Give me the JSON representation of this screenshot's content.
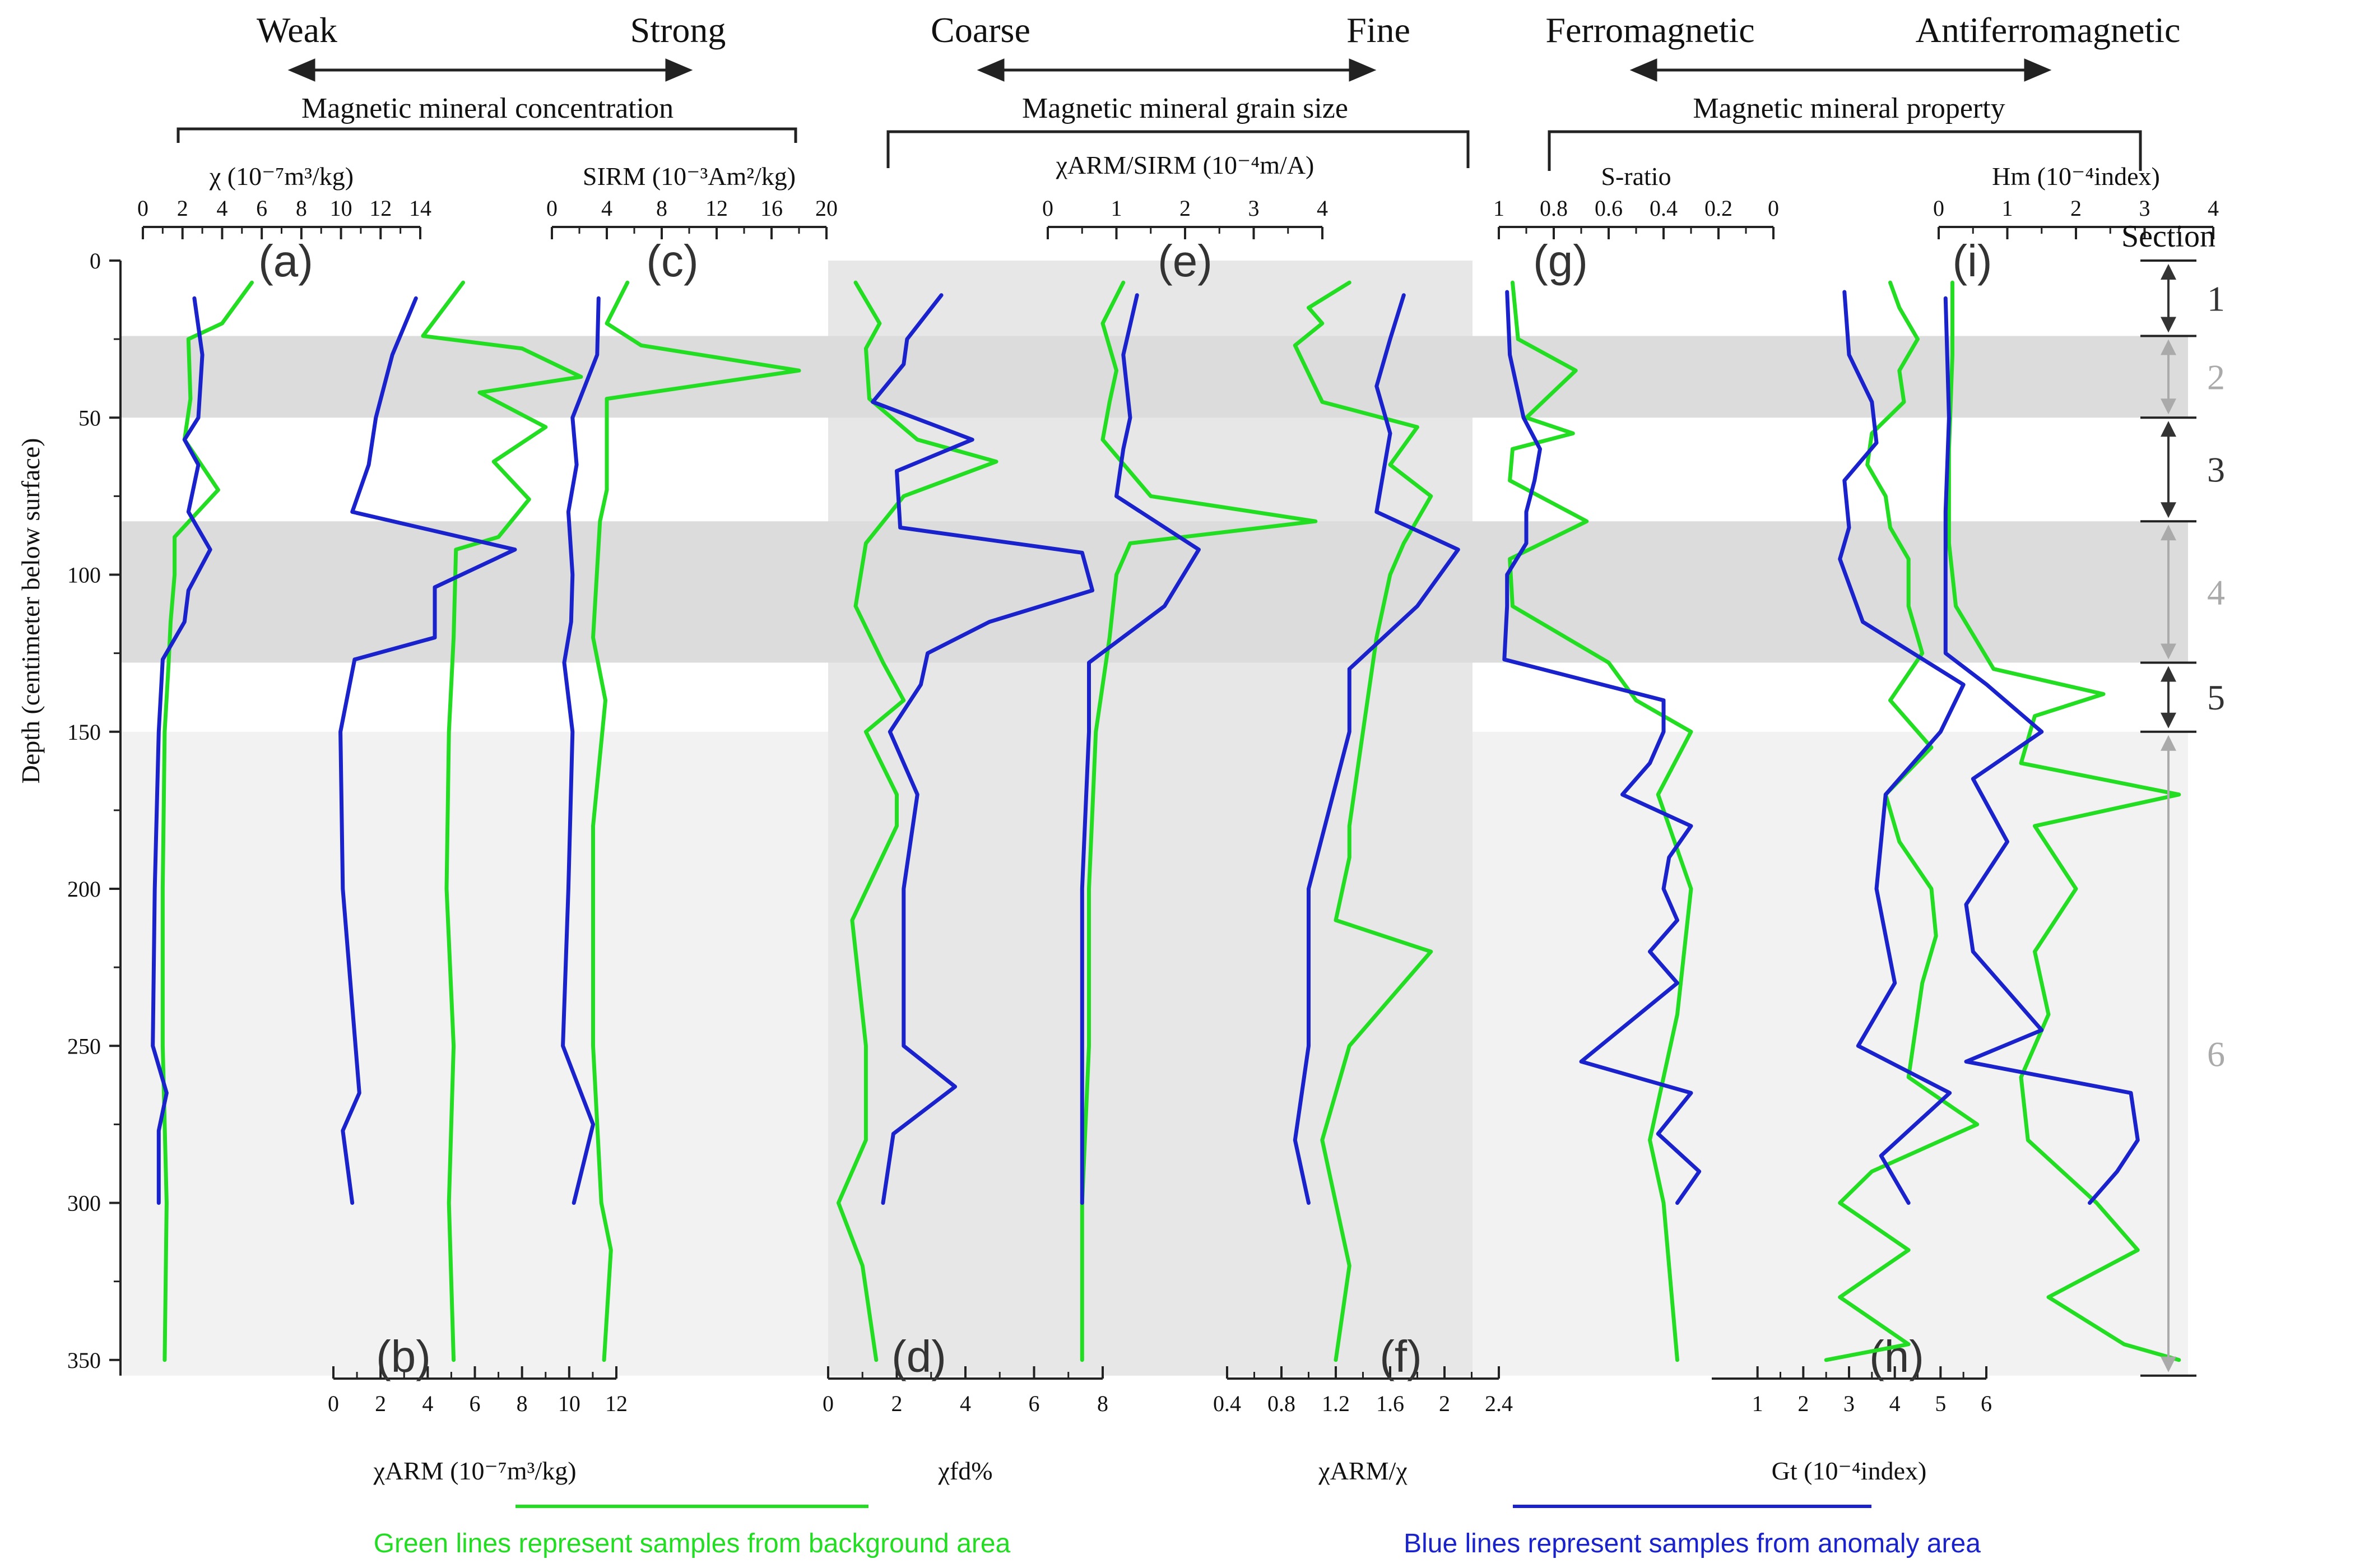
{
  "colors": {
    "background_series": "#22dd22",
    "anomaly_series": "#1a22cc",
    "band_dark": "#dcdcdc",
    "band_light": "#f2f2f2",
    "panel_shade": "#e7e7e7",
    "section_gray": "#aaaaaa",
    "text": "#111111"
  },
  "header": {
    "concentration": {
      "weak": "Weak",
      "strong": "Strong",
      "label": "Magnetic mineral concentration"
    },
    "grain_size": {
      "coarse": "Coarse",
      "fine": "Fine",
      "label": "Magnetic mineral grain size"
    },
    "property": {
      "ferro": "Ferromagnetic",
      "antiferro": "Antiferromagnetic",
      "label": "Magnetic mineral property"
    }
  },
  "depth_axis": {
    "label": "Depth (centimeter below surface)",
    "ticks": [
      0,
      50,
      100,
      150,
      200,
      250,
      300,
      350
    ]
  },
  "sections": {
    "title": "Section",
    "items": [
      {
        "label": "1",
        "top": 0,
        "bottom": 24,
        "style": "dark"
      },
      {
        "label": "2",
        "top": 24,
        "bottom": 50,
        "style": "gray"
      },
      {
        "label": "3",
        "top": 50,
        "bottom": 83,
        "style": "dark"
      },
      {
        "label": "4",
        "top": 83,
        "bottom": 128,
        "style": "gray"
      },
      {
        "label": "5",
        "top": 128,
        "bottom": 150,
        "style": "dark"
      },
      {
        "label": "6",
        "top": 150,
        "bottom": 355,
        "style": "gray"
      }
    ]
  },
  "bands": [
    {
      "top": 24,
      "bottom": 50
    },
    {
      "top": 83,
      "bottom": 128
    }
  ],
  "legend": {
    "green": "Green lines represent samples from background area",
    "blue": "Blue lines represent samples from anomaly area"
  },
  "chart_data": [
    {
      "type": "line",
      "panel": "(a)",
      "xlabel": "χ (10⁻⁷m³/kg)",
      "xlim": [
        0,
        14
      ],
      "xticks": [
        "0",
        "2",
        "4",
        "6",
        "8",
        "10",
        "12",
        "14"
      ],
      "axis": "top",
      "series": [
        {
          "name": "background",
          "depth": [
            7,
            20,
            25,
            44,
            57,
            73,
            88,
            100,
            115,
            128,
            150,
            200,
            250,
            300,
            350
          ],
          "values": [
            5.5,
            4,
            2.3,
            2.4,
            2.1,
            3.8,
            1.6,
            1.6,
            1.4,
            1.3,
            1.1,
            1.0,
            1.0,
            1.2,
            1.1
          ]
        },
        {
          "name": "anomaly",
          "depth": [
            12,
            30,
            50,
            57,
            65,
            80,
            92,
            105,
            115,
            127,
            150,
            200,
            250,
            265,
            277,
            300
          ],
          "values": [
            2.6,
            3.0,
            2.8,
            2.1,
            2.8,
            2.3,
            3.4,
            2.3,
            2.1,
            1.0,
            0.8,
            0.6,
            0.5,
            1.2,
            0.8,
            0.8
          ]
        }
      ]
    },
    {
      "type": "line",
      "panel": "(b)",
      "xlabel": "χARM (10⁻⁷m³/kg)",
      "xlim": [
        0,
        12
      ],
      "xticks": [
        "0",
        "2",
        "4",
        "6",
        "8",
        "10",
        "12"
      ],
      "axis": "bottom",
      "series": [
        {
          "name": "background",
          "depth": [
            7,
            24,
            28,
            37,
            42,
            53,
            64,
            76,
            88,
            92,
            120,
            150,
            200,
            250,
            300,
            350
          ],
          "values": [
            5.5,
            3.8,
            8.0,
            10.5,
            6.2,
            9.0,
            6.8,
            8.3,
            7.0,
            5.2,
            5.1,
            4.9,
            4.8,
            5.1,
            4.9,
            5.1
          ]
        },
        {
          "name": "anomaly",
          "depth": [
            12,
            30,
            50,
            65,
            80,
            92,
            104,
            120,
            127,
            150,
            200,
            265,
            277,
            300
          ],
          "values": [
            3.5,
            2.5,
            1.8,
            1.5,
            0.8,
            7.7,
            4.3,
            4.3,
            0.9,
            0.3,
            0.4,
            1.1,
            0.4,
            0.8
          ]
        }
      ]
    },
    {
      "type": "line",
      "panel": "(c)",
      "xlabel": "SIRM (10⁻³Am²/kg)",
      "xlim": [
        0,
        20
      ],
      "xticks": [
        "0",
        "4",
        "8",
        "12",
        "16",
        "20"
      ],
      "axis": "top",
      "series": [
        {
          "name": "background",
          "depth": [
            7,
            20,
            27,
            35,
            44,
            57,
            73,
            83,
            120,
            140,
            180,
            250,
            300,
            315,
            350
          ],
          "values": [
            5.5,
            4,
            6.5,
            18,
            4,
            4,
            4,
            3.5,
            3.0,
            3.9,
            3.0,
            3.0,
            3.6,
            4.3,
            3.8
          ]
        },
        {
          "name": "anomaly",
          "depth": [
            12,
            30,
            50,
            65,
            80,
            100,
            115,
            128,
            150,
            200,
            250,
            275,
            300
          ],
          "values": [
            3.4,
            3.3,
            1.5,
            1.8,
            1.2,
            1.5,
            1.4,
            0.9,
            1.5,
            1.2,
            0.8,
            3.0,
            1.6
          ]
        }
      ]
    },
    {
      "type": "line",
      "panel": "(d)",
      "xlabel": "χfd%",
      "xlim": [
        0,
        8
      ],
      "xticks": [
        "0",
        "2",
        "4",
        "6",
        "8"
      ],
      "axis": "bottom",
      "series": [
        {
          "name": "background",
          "depth": [
            7,
            20,
            28,
            44,
            57,
            64,
            75,
            90,
            110,
            128,
            140,
            150,
            170,
            180,
            210,
            250,
            280,
            300,
            320,
            350
          ],
          "values": [
            0.8,
            1.5,
            1.1,
            1.2,
            2.6,
            4.9,
            2.2,
            1.1,
            0.8,
            1.6,
            2.2,
            1.1,
            2.0,
            2.0,
            0.7,
            1.1,
            1.1,
            0.3,
            1.0,
            1.4
          ]
        },
        {
          "name": "anomaly",
          "depth": [
            11,
            25,
            33,
            45,
            57,
            67,
            85,
            93,
            105,
            115,
            125,
            135,
            150,
            170,
            200,
            250,
            263,
            278,
            300
          ],
          "values": [
            3.3,
            2.3,
            2.2,
            1.3,
            4.2,
            2.0,
            2.1,
            7.4,
            7.7,
            4.7,
            2.9,
            2.7,
            1.8,
            2.6,
            2.2,
            2.2,
            3.7,
            1.9,
            1.6
          ]
        }
      ]
    },
    {
      "type": "line",
      "panel": "(e)",
      "xlabel": "χARM/SIRM (10⁻⁴m/A)",
      "xlim": [
        0,
        4
      ],
      "xticks": [
        "0",
        "1",
        "2",
        "3",
        "4"
      ],
      "axis": "top",
      "series": [
        {
          "name": "background",
          "depth": [
            7,
            20,
            35,
            45,
            57,
            75,
            83,
            90,
            100,
            120,
            150,
            200,
            250,
            300,
            350
          ],
          "values": [
            1.1,
            0.8,
            1.0,
            0.9,
            0.8,
            1.5,
            3.9,
            1.2,
            1.0,
            0.9,
            0.7,
            0.6,
            0.6,
            0.5,
            0.5
          ]
        },
        {
          "name": "anomaly",
          "depth": [
            11,
            30,
            50,
            60,
            75,
            92,
            110,
            128,
            150,
            200,
            250,
            300
          ],
          "values": [
            1.3,
            1.1,
            1.2,
            1.1,
            1.0,
            2.2,
            1.7,
            0.6,
            0.6,
            0.5,
            0.5,
            0.5
          ]
        }
      ]
    },
    {
      "type": "line",
      "panel": "(f)",
      "xlabel": "χARM/χ",
      "xlim": [
        0.4,
        2.4
      ],
      "xticks": [
        "0.4",
        "0.8",
        "1.2",
        "1.6",
        "2",
        "2.4"
      ],
      "axis": "bottom",
      "series": [
        {
          "name": "background",
          "depth": [
            7,
            15,
            20,
            27,
            45,
            53,
            65,
            75,
            90,
            100,
            120,
            150,
            180,
            190,
            210,
            220,
            250,
            280,
            300,
            320,
            350
          ],
          "values": [
            1.3,
            1.0,
            1.1,
            0.9,
            1.1,
            1.8,
            1.6,
            1.9,
            1.7,
            1.6,
            1.5,
            1.4,
            1.3,
            1.3,
            1.2,
            1.9,
            1.3,
            1.1,
            1.2,
            1.3,
            1.2
          ]
        },
        {
          "name": "anomaly",
          "depth": [
            11,
            25,
            40,
            55,
            80,
            92,
            110,
            130,
            150,
            200,
            250,
            280,
            300
          ],
          "values": [
            1.7,
            1.6,
            1.5,
            1.6,
            1.5,
            2.1,
            1.8,
            1.3,
            1.3,
            1.0,
            1.0,
            0.9,
            1.0
          ]
        }
      ]
    },
    {
      "type": "line",
      "panel": "(g)",
      "xlabel": "S-ratio",
      "xlim": [
        1,
        0
      ],
      "reverse": true,
      "xticks": [
        "1",
        "0.8",
        "0.6",
        "0.4",
        "0.2",
        "0"
      ],
      "axis": "top",
      "series": [
        {
          "name": "background",
          "depth": [
            7,
            25,
            35,
            50,
            55,
            60,
            70,
            83,
            95,
            110,
            128,
            140,
            150,
            170,
            200,
            240,
            280,
            300,
            350
          ],
          "values": [
            0.95,
            0.93,
            0.72,
            0.9,
            0.73,
            0.95,
            0.96,
            0.68,
            0.96,
            0.95,
            0.6,
            0.5,
            0.3,
            0.42,
            0.3,
            0.35,
            0.45,
            0.4,
            0.35
          ]
        },
        {
          "name": "anomaly",
          "depth": [
            10,
            30,
            50,
            60,
            70,
            80,
            90,
            100,
            110,
            127,
            140,
            150,
            160,
            170,
            180,
            190,
            200,
            210,
            220,
            230,
            255,
            265,
            278,
            290,
            300
          ],
          "values": [
            0.97,
            0.96,
            0.91,
            0.85,
            0.87,
            0.9,
            0.9,
            0.97,
            0.97,
            0.98,
            0.4,
            0.4,
            0.45,
            0.55,
            0.3,
            0.38,
            0.4,
            0.35,
            0.45,
            0.35,
            0.7,
            0.3,
            0.42,
            0.27,
            0.35
          ]
        }
      ]
    },
    {
      "type": "line",
      "panel": "(h)",
      "xlabel": "Gt (10⁻⁴index)",
      "xlim": [
        0,
        6
      ],
      "xticks": [
        "1",
        "2",
        "3",
        "4",
        "5",
        "6"
      ],
      "axis": "bottom",
      "ticks_from": 1,
      "series": [
        {
          "name": "background",
          "depth": [
            7,
            15,
            25,
            35,
            45,
            55,
            65,
            75,
            85,
            95,
            110,
            125,
            140,
            155,
            170,
            185,
            200,
            215,
            230,
            260,
            275,
            290,
            300,
            315,
            330,
            345,
            350
          ],
          "values": [
            3.9,
            4.1,
            4.5,
            4.1,
            4.2,
            3.5,
            3.4,
            3.8,
            3.9,
            4.3,
            4.3,
            4.6,
            3.9,
            4.8,
            3.8,
            4.1,
            4.8,
            4.9,
            4.6,
            4.3,
            5.8,
            3.5,
            2.8,
            4.3,
            2.8,
            4.3,
            2.5
          ]
        },
        {
          "name": "anomaly",
          "depth": [
            10,
            30,
            45,
            58,
            70,
            85,
            95,
            115,
            135,
            150,
            170,
            200,
            230,
            250,
            265,
            285,
            300
          ],
          "values": [
            2.9,
            3.0,
            3.5,
            3.6,
            2.9,
            3.0,
            2.8,
            3.3,
            5.5,
            5.0,
            3.8,
            3.6,
            4.0,
            3.2,
            5.2,
            3.7,
            4.3
          ]
        }
      ]
    },
    {
      "type": "line",
      "panel": "(i)",
      "xlabel": "Hm (10⁻⁴index)",
      "xlim": [
        0,
        4
      ],
      "xticks": [
        "0",
        "1",
        "2",
        "3",
        "4"
      ],
      "axis": "top",
      "series": [
        {
          "name": "background",
          "depth": [
            7,
            30,
            60,
            90,
            110,
            130,
            138,
            145,
            160,
            170,
            180,
            200,
            220,
            240,
            260,
            280,
            300,
            315,
            330,
            345,
            350
          ],
          "values": [
            0.2,
            0.2,
            0.15,
            0.15,
            0.25,
            0.8,
            2.4,
            1.4,
            1.2,
            3.5,
            1.4,
            2.0,
            1.4,
            1.6,
            1.2,
            1.3,
            2.3,
            2.9,
            1.6,
            2.7,
            3.5
          ]
        },
        {
          "name": "anomaly",
          "depth": [
            12,
            50,
            80,
            125,
            135,
            150,
            165,
            185,
            205,
            220,
            245,
            255,
            265,
            280,
            290,
            300
          ],
          "values": [
            0.1,
            0.15,
            0.1,
            0.1,
            0.7,
            1.5,
            0.5,
            1.0,
            0.4,
            0.5,
            1.5,
            0.4,
            2.8,
            2.9,
            2.6,
            2.2
          ]
        }
      ]
    }
  ]
}
